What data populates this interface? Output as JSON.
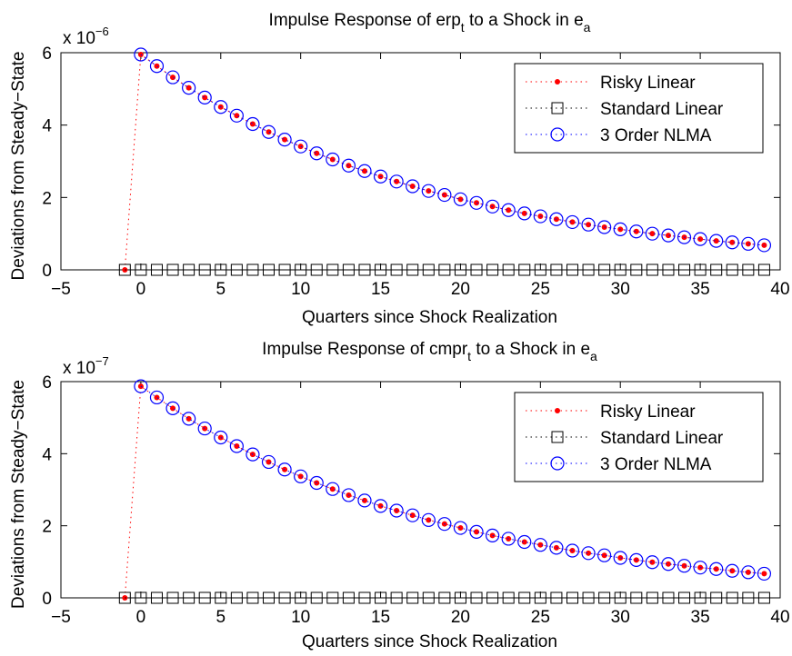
{
  "colors": {
    "risky": "#ff0000",
    "standard": "#000000",
    "nlma": "#0000ff",
    "axes": "#000000",
    "background": "#ffffff"
  },
  "chart_data": [
    {
      "type": "line",
      "title": {
        "main": "Impulse Response of erp",
        "main_sub": "t",
        "middle": " to a Shock in e",
        "end_sub": "a"
      },
      "xlabel": "Quarters since Shock Realization",
      "ylabel": "Deviations from Steady−State",
      "y_multiplier": {
        "prefix": "x 10",
        "exponent": "−6"
      },
      "xlim": [
        -5,
        40
      ],
      "ylim": [
        0,
        6
      ],
      "x_ticks": [
        -5,
        0,
        5,
        10,
        15,
        20,
        25,
        30,
        35,
        40
      ],
      "x_tick_labels": [
        "−5",
        "0",
        "5",
        "10",
        "15",
        "20",
        "25",
        "30",
        "35",
        "40"
      ],
      "y_ticks": [
        0,
        2,
        4,
        6
      ],
      "y_tick_labels": [
        "0",
        "2",
        "4",
        "6"
      ],
      "grid": false,
      "legend": {
        "position": "top-right",
        "entries": [
          "Risky Linear",
          "Standard Linear",
          "3 Order NLMA"
        ]
      },
      "x": [
        -1,
        0,
        1,
        2,
        3,
        4,
        5,
        6,
        7,
        8,
        9,
        10,
        11,
        12,
        13,
        14,
        15,
        16,
        17,
        18,
        19,
        20,
        21,
        22,
        23,
        24,
        25,
        26,
        27,
        28,
        29,
        30,
        31,
        32,
        33,
        34,
        35,
        36,
        37,
        38,
        39
      ],
      "series": [
        {
          "name": "Risky Linear",
          "marker": "dot",
          "values": [
            0,
            5.95,
            5.63,
            5.32,
            5.03,
            4.76,
            4.5,
            4.26,
            4.03,
            3.81,
            3.6,
            3.41,
            3.22,
            3.05,
            2.88,
            2.73,
            2.58,
            2.44,
            2.31,
            2.18,
            2.07,
            1.95,
            1.85,
            1.75,
            1.65,
            1.56,
            1.48,
            1.4,
            1.32,
            1.25,
            1.18,
            1.12,
            1.06,
            1.0,
            0.95,
            0.9,
            0.85,
            0.8,
            0.76,
            0.72,
            0.68
          ]
        },
        {
          "name": "Standard Linear",
          "marker": "square",
          "values": [
            0,
            0,
            0,
            0,
            0,
            0,
            0,
            0,
            0,
            0,
            0,
            0,
            0,
            0,
            0,
            0,
            0,
            0,
            0,
            0,
            0,
            0,
            0,
            0,
            0,
            0,
            0,
            0,
            0,
            0,
            0,
            0,
            0,
            0,
            0,
            0,
            0,
            0,
            0,
            0,
            0
          ]
        },
        {
          "name": "3 Order NLMA",
          "marker": "circle",
          "values": [
            null,
            5.95,
            5.63,
            5.32,
            5.03,
            4.76,
            4.5,
            4.26,
            4.03,
            3.81,
            3.6,
            3.41,
            3.22,
            3.05,
            2.88,
            2.73,
            2.58,
            2.44,
            2.31,
            2.18,
            2.07,
            1.95,
            1.85,
            1.75,
            1.65,
            1.56,
            1.48,
            1.4,
            1.32,
            1.25,
            1.18,
            1.12,
            1.06,
            1.0,
            0.95,
            0.9,
            0.85,
            0.8,
            0.76,
            0.72,
            0.68
          ]
        }
      ]
    },
    {
      "type": "line",
      "title": {
        "main": "Impulse Response of cmpr",
        "main_sub": "t",
        "middle": " to a Shock in e",
        "end_sub": "a"
      },
      "xlabel": "Quarters since Shock Realization",
      "ylabel": "Deviations from Steady−State",
      "y_multiplier": {
        "prefix": "x 10",
        "exponent": "−7"
      },
      "xlim": [
        -5,
        40
      ],
      "ylim": [
        0,
        6
      ],
      "x_ticks": [
        -5,
        0,
        5,
        10,
        15,
        20,
        25,
        30,
        35,
        40
      ],
      "x_tick_labels": [
        "−5",
        "0",
        "5",
        "10",
        "15",
        "20",
        "25",
        "30",
        "35",
        "40"
      ],
      "y_ticks": [
        0,
        2,
        4,
        6
      ],
      "y_tick_labels": [
        "0",
        "2",
        "4",
        "6"
      ],
      "grid": false,
      "legend": {
        "position": "top-right",
        "entries": [
          "Risky Linear",
          "Standard Linear",
          "3 Order NLMA"
        ]
      },
      "x": [
        -1,
        0,
        1,
        2,
        3,
        4,
        5,
        6,
        7,
        8,
        9,
        10,
        11,
        12,
        13,
        14,
        15,
        16,
        17,
        18,
        19,
        20,
        21,
        22,
        23,
        24,
        25,
        26,
        27,
        28,
        29,
        30,
        31,
        32,
        33,
        34,
        35,
        36,
        37,
        38,
        39
      ],
      "series": [
        {
          "name": "Risky Linear",
          "marker": "dot",
          "values": [
            0,
            5.87,
            5.56,
            5.26,
            4.97,
            4.7,
            4.45,
            4.21,
            3.98,
            3.77,
            3.56,
            3.37,
            3.19,
            3.02,
            2.85,
            2.7,
            2.55,
            2.42,
            2.29,
            2.16,
            2.05,
            1.94,
            1.83,
            1.73,
            1.64,
            1.55,
            1.47,
            1.39,
            1.31,
            1.24,
            1.18,
            1.11,
            1.05,
            0.99,
            0.94,
            0.89,
            0.84,
            0.8,
            0.75,
            0.71,
            0.67
          ]
        },
        {
          "name": "Standard Linear",
          "marker": "square",
          "values": [
            0,
            0,
            0,
            0,
            0,
            0,
            0,
            0,
            0,
            0,
            0,
            0,
            0,
            0,
            0,
            0,
            0,
            0,
            0,
            0,
            0,
            0,
            0,
            0,
            0,
            0,
            0,
            0,
            0,
            0,
            0,
            0,
            0,
            0,
            0,
            0,
            0,
            0,
            0,
            0,
            0
          ]
        },
        {
          "name": "3 Order NLMA",
          "marker": "circle",
          "values": [
            null,
            5.87,
            5.56,
            5.26,
            4.97,
            4.7,
            4.45,
            4.21,
            3.98,
            3.77,
            3.56,
            3.37,
            3.19,
            3.02,
            2.85,
            2.7,
            2.55,
            2.42,
            2.29,
            2.16,
            2.05,
            1.94,
            1.83,
            1.73,
            1.64,
            1.55,
            1.47,
            1.39,
            1.31,
            1.24,
            1.18,
            1.11,
            1.05,
            0.99,
            0.94,
            0.89,
            0.84,
            0.8,
            0.75,
            0.71,
            0.67
          ]
        }
      ]
    }
  ]
}
